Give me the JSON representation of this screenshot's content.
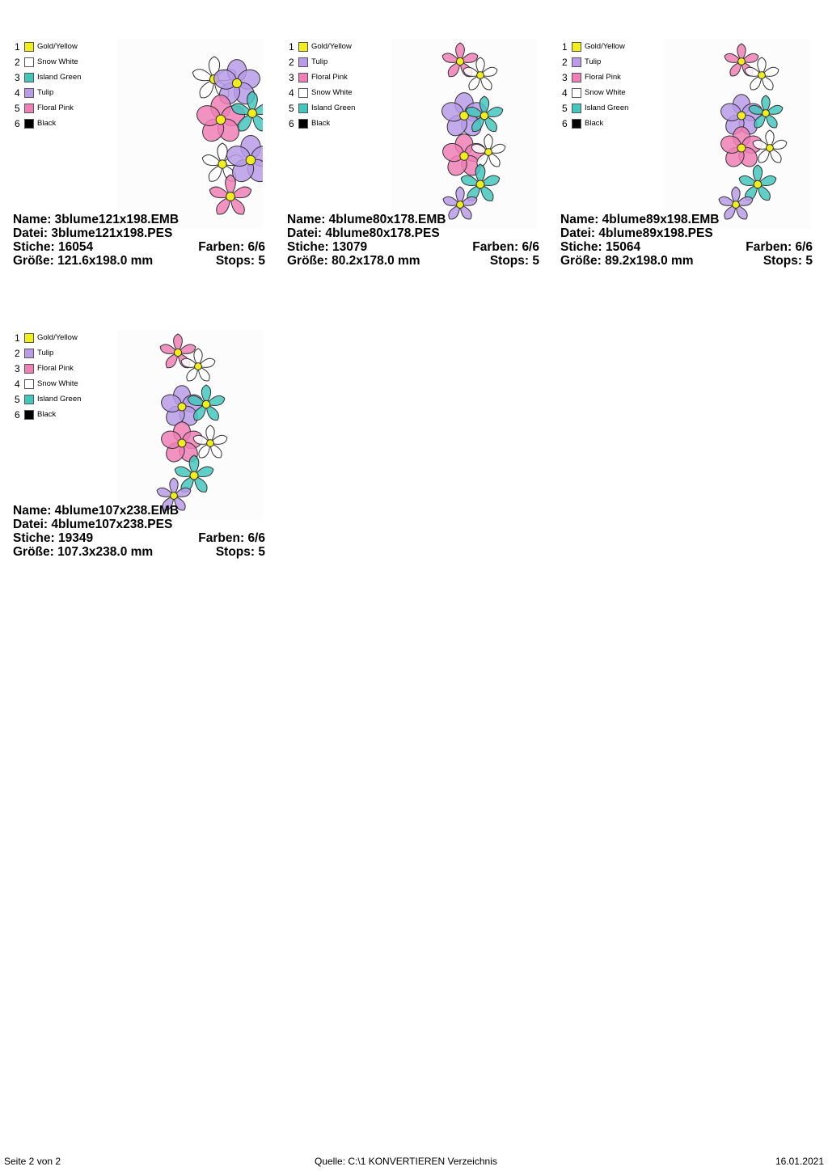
{
  "colors": {
    "Gold/Yellow": "#f2ee1c",
    "Snow White": "#ffffff",
    "Island Green": "#43c7bd",
    "Tulip": "#b99be8",
    "Floral Pink": "#f07fb6",
    "Black": "#000000"
  },
  "designs": [
    {
      "palette": [
        {
          "num": "1",
          "name": "Gold/Yellow"
        },
        {
          "num": "2",
          "name": "Snow White"
        },
        {
          "num": "3",
          "name": "Island Green"
        },
        {
          "num": "4",
          "name": "Tulip"
        },
        {
          "num": "5",
          "name": "Floral Pink"
        },
        {
          "num": "6",
          "name": "Black"
        }
      ],
      "name": "Name: 3blume121x198.EMB",
      "file": "Datei: 3blume121x198.PES",
      "stitches": "Stiche: 16054",
      "colors_count": "Farben: 6/6",
      "size": "Größe: 121.6x198.0 mm",
      "stops": "Stops: 5"
    },
    {
      "palette": [
        {
          "num": "1",
          "name": "Gold/Yellow"
        },
        {
          "num": "2",
          "name": "Tulip"
        },
        {
          "num": "3",
          "name": "Floral Pink"
        },
        {
          "num": "4",
          "name": "Snow White"
        },
        {
          "num": "5",
          "name": "Island Green"
        },
        {
          "num": "6",
          "name": "Black"
        }
      ],
      "name": "Name: 4blume80x178.EMB",
      "file": "Datei: 4blume80x178.PES",
      "stitches": "Stiche: 13079",
      "colors_count": "Farben: 6/6",
      "size": "Größe: 80.2x178.0 mm",
      "stops": "Stops: 5"
    },
    {
      "palette": [
        {
          "num": "1",
          "name": "Gold/Yellow"
        },
        {
          "num": "2",
          "name": "Tulip"
        },
        {
          "num": "3",
          "name": "Floral Pink"
        },
        {
          "num": "4",
          "name": "Snow White"
        },
        {
          "num": "5",
          "name": "Island Green"
        },
        {
          "num": "6",
          "name": "Black"
        }
      ],
      "name": "Name: 4blume89x198.EMB",
      "file": "Datei: 4blume89x198.PES",
      "stitches": "Stiche: 15064",
      "colors_count": "Farben: 6/6",
      "size": "Größe: 89.2x198.0 mm",
      "stops": "Stops: 5"
    },
    {
      "palette": [
        {
          "num": "1",
          "name": "Gold/Yellow"
        },
        {
          "num": "2",
          "name": "Tulip"
        },
        {
          "num": "3",
          "name": "Floral Pink"
        },
        {
          "num": "4",
          "name": "Snow White"
        },
        {
          "num": "5",
          "name": "Island Green"
        },
        {
          "num": "6",
          "name": "Black"
        }
      ],
      "name": "Name: 4blume107x238.EMB",
      "file": "Datei: 4blume107x238.PES",
      "stitches": "Stiche: 19349",
      "colors_count": "Farben: 6/6",
      "size": "Größe: 107.3x238.0 mm",
      "stops": "Stops: 5"
    }
  ],
  "footer": {
    "page": "Seite 2 von 2",
    "source": "Quelle: C:\\1 KONVERTIEREN Verzeichnis",
    "date": "16.01.2021"
  }
}
